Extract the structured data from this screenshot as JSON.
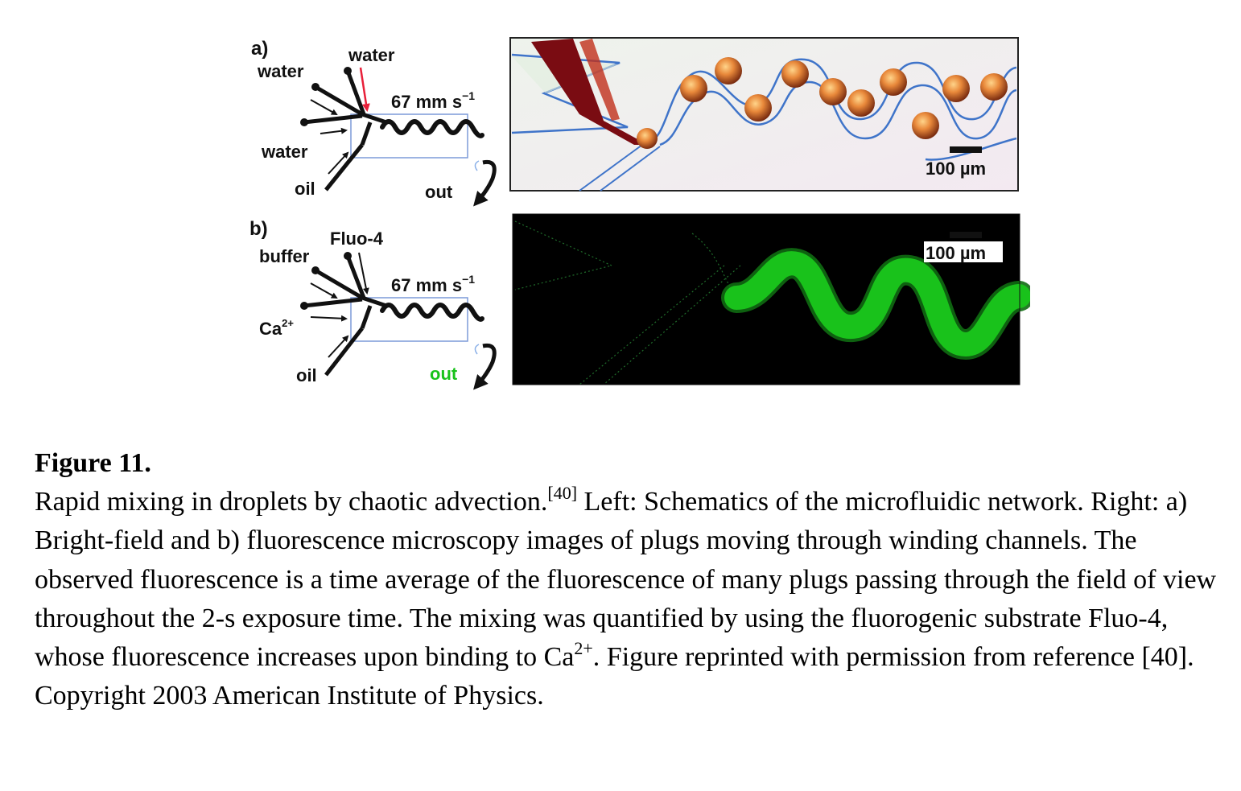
{
  "panel_a": {
    "label": "a)",
    "inlet_top": "water",
    "inlet_left": "water",
    "inlet_mid": "water",
    "inlet_oil": "oil",
    "outlet": "out",
    "speed": "67 mm s",
    "speed_exp": "−1",
    "scale_bar": "100 µm"
  },
  "panel_b": {
    "label": "b)",
    "inlet_top": "Fluo-4",
    "inlet_left": "buffer",
    "inlet_mid": "Ca",
    "inlet_mid_sup": "2+",
    "inlet_oil": "oil",
    "outlet": "out",
    "speed": "67 mm s",
    "speed_exp": "−1",
    "scale_bar": "100 µm"
  },
  "colors": {
    "arrow_red": "#e8203a",
    "fluo_green": "#19c21b",
    "channel_blue": "#3f74c9"
  },
  "caption": {
    "title": "Figure 11.",
    "t1": "Rapid mixing in droplets by chaotic advection.",
    "ref1": "[40]",
    "t2": " Left: Schematics of the microfluidic network. Right: a) Bright-field and b) fluorescence microscopy images of plugs moving through winding channels. The observed fluorescence is a time average of the fluorescence of many plugs passing through the field of view throughout the 2-s exposure time. The mixing was quantified by using the fluorogenic substrate Fluo-4, whose fluorescence increases upon binding to Ca",
    "ion_sup": "2+",
    "t3": ". Figure reprinted with permission from reference [40]. Copyright 2003 American Institute of Physics."
  }
}
